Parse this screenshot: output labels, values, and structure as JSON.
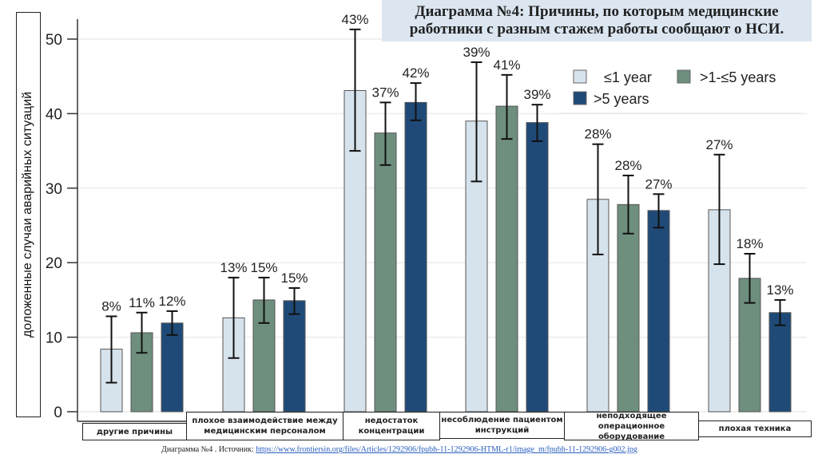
{
  "title": "Диаграмма №4: Причины, по которым медицинские работники с разным стажем работы сообщают о НСИ.",
  "source_prefix": "Диаграмма №4 . Источник: ",
  "source_link": "https://www.frontiersin.org/files/Articles/1292906/fpubh-11-1292906-HTML-r1/image_m/fpubh-11-1292906-g002.jpg",
  "chart_data": {
    "type": "bar",
    "title": "Диаграмма №4: Причины, по которым медицинские работники с разным стажем работы сообщают о НСИ.",
    "xlabel": "",
    "ylabel": "доложенные случаи аварийных ситуаций",
    "ylim": [
      0,
      52
    ],
    "yticks": [
      0,
      10,
      20,
      30,
      40,
      50
    ],
    "grid": true,
    "legend_position": "top-right",
    "categories": [
      "другие причины",
      "плохое взаимодействие между медицинским персоналом",
      "недостаток концентрации",
      "несоблюдение пациентом инструкций",
      "неподходящее операционное оборудование",
      "плохая техника"
    ],
    "series": [
      {
        "name": "≤1 year",
        "color": "#d6e2ec",
        "values": [
          8.4,
          12.6,
          43.1,
          39.0,
          28.5,
          27.1
        ],
        "labels": [
          "8%",
          "13%",
          "43%",
          "39%",
          "28%",
          "27%"
        ],
        "error_high": [
          12.8,
          18.0,
          51.3,
          46.9,
          35.9,
          34.5
        ],
        "error_low": [
          3.9,
          7.2,
          35.0,
          30.9,
          21.1,
          19.8
        ]
      },
      {
        "name": ">1-≤5 years",
        "color": "#6e8e7e",
        "values": [
          10.6,
          15.0,
          37.4,
          41.0,
          27.8,
          17.9
        ],
        "labels": [
          "11%",
          "15%",
          "37%",
          "41%",
          "28%",
          "18%"
        ],
        "error_high": [
          13.3,
          18.0,
          41.5,
          45.2,
          31.7,
          21.2
        ],
        "error_low": [
          7.9,
          11.9,
          33.1,
          36.6,
          23.9,
          14.6
        ]
      },
      {
        "name": ">5 years",
        "color": "#1f4a78",
        "values": [
          11.9,
          14.9,
          41.5,
          38.8,
          27.0,
          13.3
        ],
        "labels": [
          "12%",
          "15%",
          "42%",
          "39%",
          "27%",
          "13%"
        ],
        "error_high": [
          13.5,
          16.6,
          44.1,
          41.2,
          29.2,
          15.0
        ],
        "error_low": [
          10.3,
          13.1,
          39.1,
          36.3,
          24.7,
          11.6
        ]
      }
    ]
  }
}
